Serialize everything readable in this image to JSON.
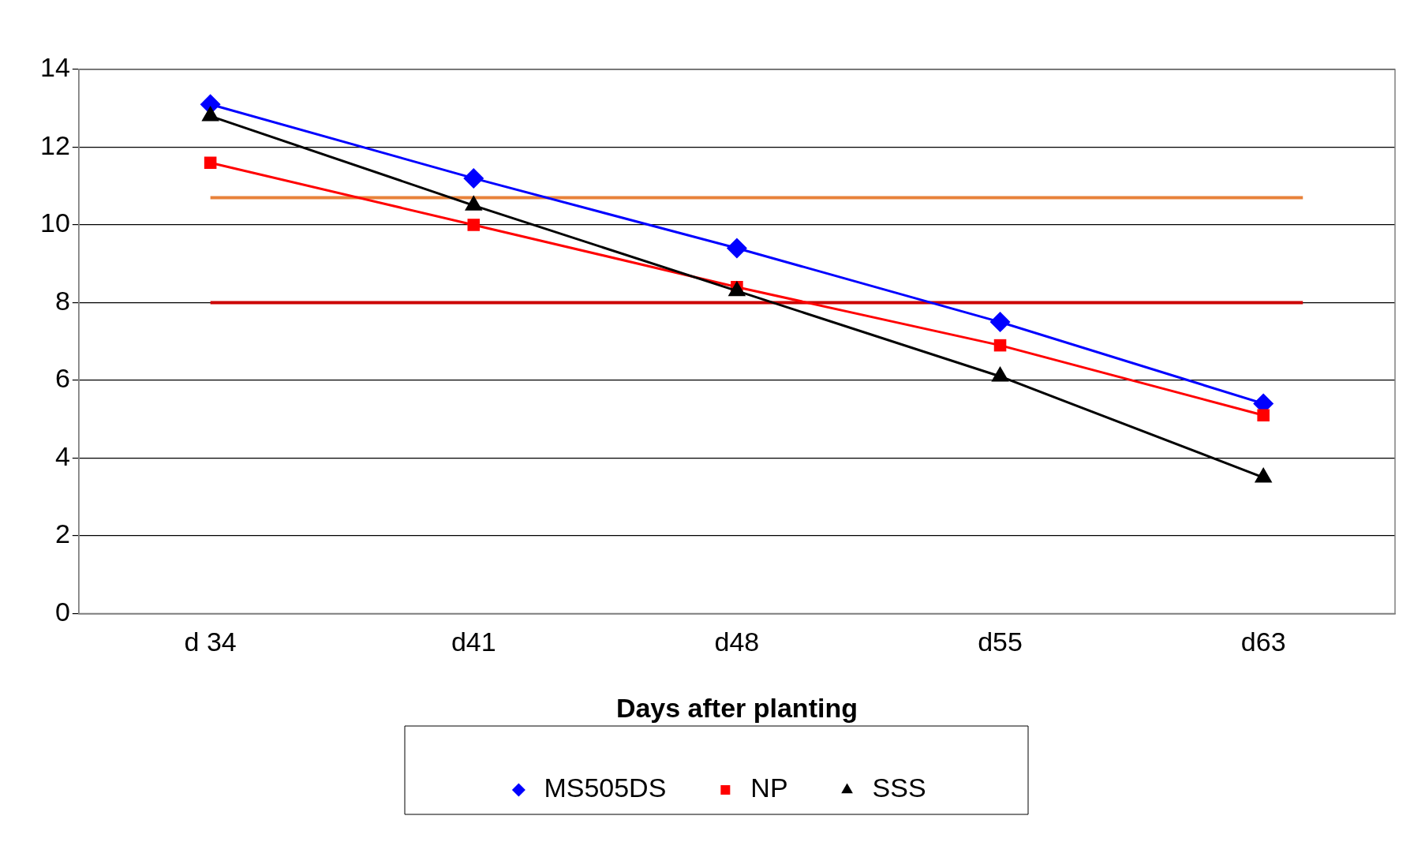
{
  "chart_data": {
    "type": "line",
    "xlabel": "Days after planting",
    "categories": [
      "d 34",
      "d41",
      "d48",
      "d55",
      "d63"
    ],
    "series": [
      {
        "name": "MS505DS",
        "color": "#0000ff",
        "marker": "diamond",
        "values": [
          13.1,
          11.2,
          9.4,
          7.5,
          5.4
        ]
      },
      {
        "name": "NP",
        "color": "#ff0000",
        "marker": "square",
        "values": [
          11.6,
          10.0,
          8.4,
          6.9,
          5.1
        ]
      },
      {
        "name": "SSS",
        "color": "#000000",
        "marker": "triangle",
        "values": [
          12.8,
          10.5,
          8.3,
          6.1,
          3.5
        ]
      }
    ],
    "ylim": [
      0,
      14
    ],
    "yticks": [
      0,
      2,
      4,
      6,
      8,
      10,
      12,
      14
    ],
    "grid": "y",
    "legend": "bottom",
    "ref_lines": [
      {
        "axis": "y",
        "value": 10.7,
        "color": "#e8823a"
      },
      {
        "axis": "y",
        "value": 8.0,
        "color": "#cc0000"
      }
    ]
  }
}
